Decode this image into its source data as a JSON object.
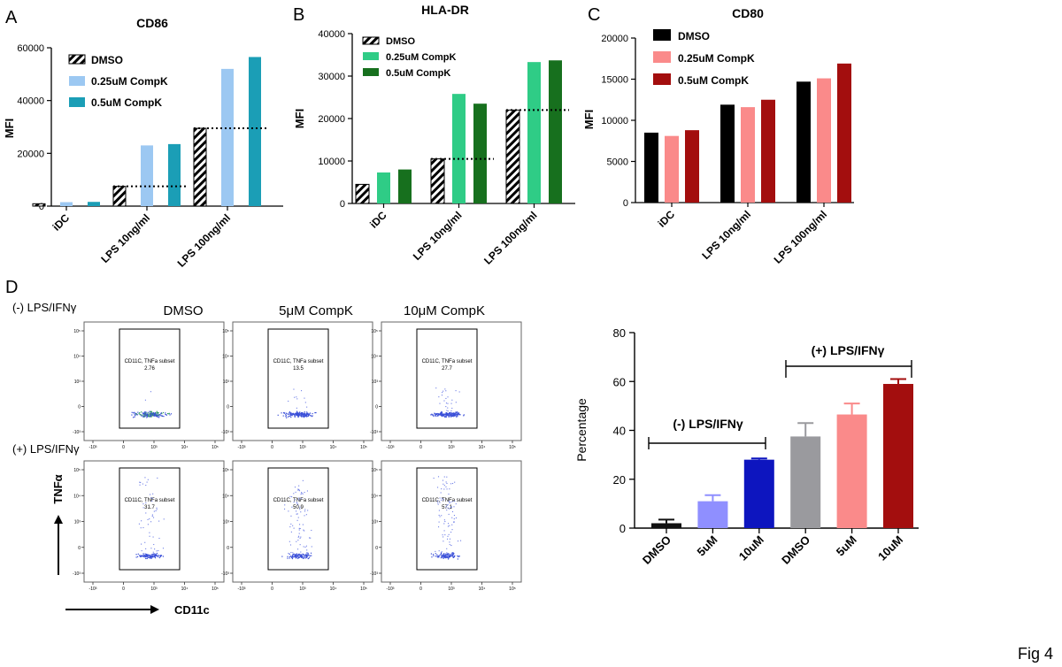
{
  "panel_labels": {
    "a": "A",
    "b": "B",
    "c": "C",
    "d": "D"
  },
  "figure_label": "Fig 4",
  "colors": {
    "dmso_black": "#000000",
    "cd86_light": "#9cc8f2",
    "cd86_dark": "#1b9eb6",
    "hla_light": "#2fcc86",
    "hla_dark": "#17701e",
    "cd80_pink": "#fa8a8a",
    "cd80_red": "#a30e0e",
    "d_neg_dmso": "#111111",
    "d_neg_5": "#8f8fff",
    "d_neg_10": "#0d15bf",
    "d_pos_dmso": "#9a9a9e",
    "d_pos_5": "#fa8a8a",
    "d_pos_10": "#a30e0e"
  },
  "chart_data": [
    {
      "id": "cd86",
      "type": "bar",
      "title": "CD86",
      "ylabel": "MFI",
      "xlabel": "",
      "ylim": [
        0,
        60000
      ],
      "yticks": [
        "0",
        "20000",
        "40000",
        "60000"
      ],
      "categories": [
        "iDC",
        "LPS 10ng/ml",
        "LPS 100ng/ml"
      ],
      "series": [
        {
          "name": "DMSO",
          "values": [
            900,
            7500,
            29500
          ]
        },
        {
          "name": "0.25uM CompK",
          "values": [
            1500,
            23000,
            52000
          ]
        },
        {
          "name": "0.5uM CompK",
          "values": [
            1600,
            23500,
            56500
          ]
        }
      ]
    },
    {
      "id": "hla",
      "type": "bar",
      "title": "HLA-DR",
      "ylabel": "MFI",
      "xlabel": "",
      "ylim": [
        0,
        40000
      ],
      "yticks": [
        "0",
        "10000",
        "20000",
        "30000",
        "40000"
      ],
      "categories": [
        "iDC",
        "LPS 10ng/ml",
        "LPS 100ng/ml"
      ],
      "series": [
        {
          "name": "DMSO",
          "values": [
            4500,
            10500,
            22000
          ]
        },
        {
          "name": "0.25uM CompK",
          "values": [
            7300,
            25800,
            33300
          ]
        },
        {
          "name": "0.5uM CompK",
          "values": [
            8000,
            23500,
            33700
          ]
        }
      ]
    },
    {
      "id": "cd80",
      "type": "bar",
      "title": "CD80",
      "ylabel": "MFI",
      "xlabel": "",
      "ylim": [
        0,
        20000
      ],
      "yticks": [
        "0",
        "5000",
        "10000",
        "15000",
        "20000"
      ],
      "categories": [
        "iDC",
        "LPS 10ng/ml",
        "LPS 100ng/ml"
      ],
      "series": [
        {
          "name": "DMSO",
          "values": [
            8500,
            11900,
            14700
          ]
        },
        {
          "name": "0.25uM CompK",
          "values": [
            8100,
            11600,
            15100
          ]
        },
        {
          "name": "0.5uM CompK",
          "values": [
            8800,
            12500,
            16900
          ]
        }
      ]
    },
    {
      "id": "pct",
      "type": "bar",
      "title": "",
      "ylabel": "Percentage",
      "xlabel": "",
      "ylim": [
        0,
        80
      ],
      "yticks": [
        "0",
        "20",
        "40",
        "60",
        "80"
      ],
      "categories": [
        "DMSO",
        "5uM",
        "10uM",
        "DMSO",
        "5uM",
        "10uM"
      ],
      "values": [
        2,
        11,
        28,
        37.5,
        46.5,
        59
      ],
      "errors": [
        1.5,
        2.5,
        0.5,
        5.5,
        4.5,
        2
      ],
      "annotations": [
        "(-) LPS/IFNγ",
        "(+) LPS/IFNγ"
      ]
    }
  ],
  "flow": {
    "column_titles": [
      "DMSO",
      "5μM CompK",
      "10μM CompK"
    ],
    "row_labels": [
      "(-) LPS/IFNγ",
      "(+) LPS/IFNγ"
    ],
    "gate_name": "CD11C, TNFa subset",
    "gate_values": [
      [
        "2.76",
        "13.5",
        "27.7"
      ],
      [
        "31.7",
        "50.9",
        "57.1"
      ]
    ],
    "y_axis_label": "TNFα",
    "x_axis_label": "CD11c",
    "y_ticks": [
      "10⁵",
      "10⁴",
      "10³",
      "0",
      "-10³"
    ],
    "x_ticks": [
      "-10³",
      "0",
      "10³",
      "10⁴",
      "10⁵"
    ]
  }
}
